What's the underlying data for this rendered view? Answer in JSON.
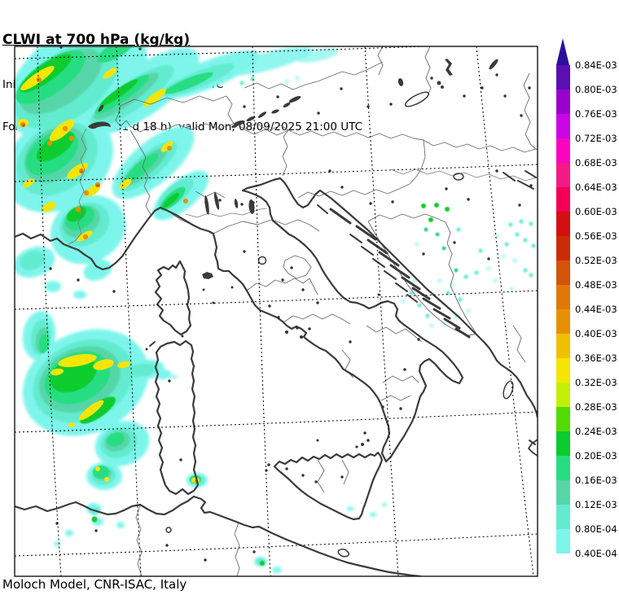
{
  "header": {
    "title": "CLWI at 700 hPa (kg/kg)",
    "initial_time": "Initial time  Sun, 07/09/2025  03:00 UTC",
    "forecast": "Forecast  +  42 h  (001 d 18 h)  valid Mon, 08/09/2025 21:00 UTC"
  },
  "footer": {
    "credit": "Moloch Model, CNR-ISAC, Italy"
  },
  "colorbar": {
    "arrow_color": "#2E0E9E",
    "labels": [
      "0.84E-03",
      "0.80E-03",
      "0.76E-03",
      "0.72E-03",
      "0.68E-03",
      "0.64E-03",
      "0.60E-03",
      "0.56E-03",
      "0.52E-03",
      "0.48E-03",
      "0.44E-03",
      "0.40E-03",
      "0.36E-03",
      "0.32E-03",
      "0.28E-03",
      "0.24E-03",
      "0.20E-03",
      "0.16E-03",
      "0.12E-03",
      "0.80E-04",
      "0.40E-04"
    ],
    "colors": [
      "#5A0FB4",
      "#9902CC",
      "#CC05E6",
      "#FA05BE",
      "#F51987",
      "#F50055",
      "#D40F14",
      "#CC2B08",
      "#D4540A",
      "#E07808",
      "#E89005",
      "#F0C005",
      "#F5E505",
      "#C2F005",
      "#53DB05",
      "#0ACC2E",
      "#26DE81",
      "#57D6A8",
      "#63EBD0",
      "#7DF5EB"
    ]
  },
  "map": {
    "background": "#ffffff",
    "coast_color": "#3b3b3b",
    "border_color": "#6a6a6a",
    "grid_color": "#000000",
    "cloud_levels": [
      "#7DF5EB",
      "#63EBD0",
      "#57D6A8",
      "#26DE81",
      "#0ACC2E",
      "#F5E505",
      "#E89005",
      "#D4540A"
    ]
  }
}
